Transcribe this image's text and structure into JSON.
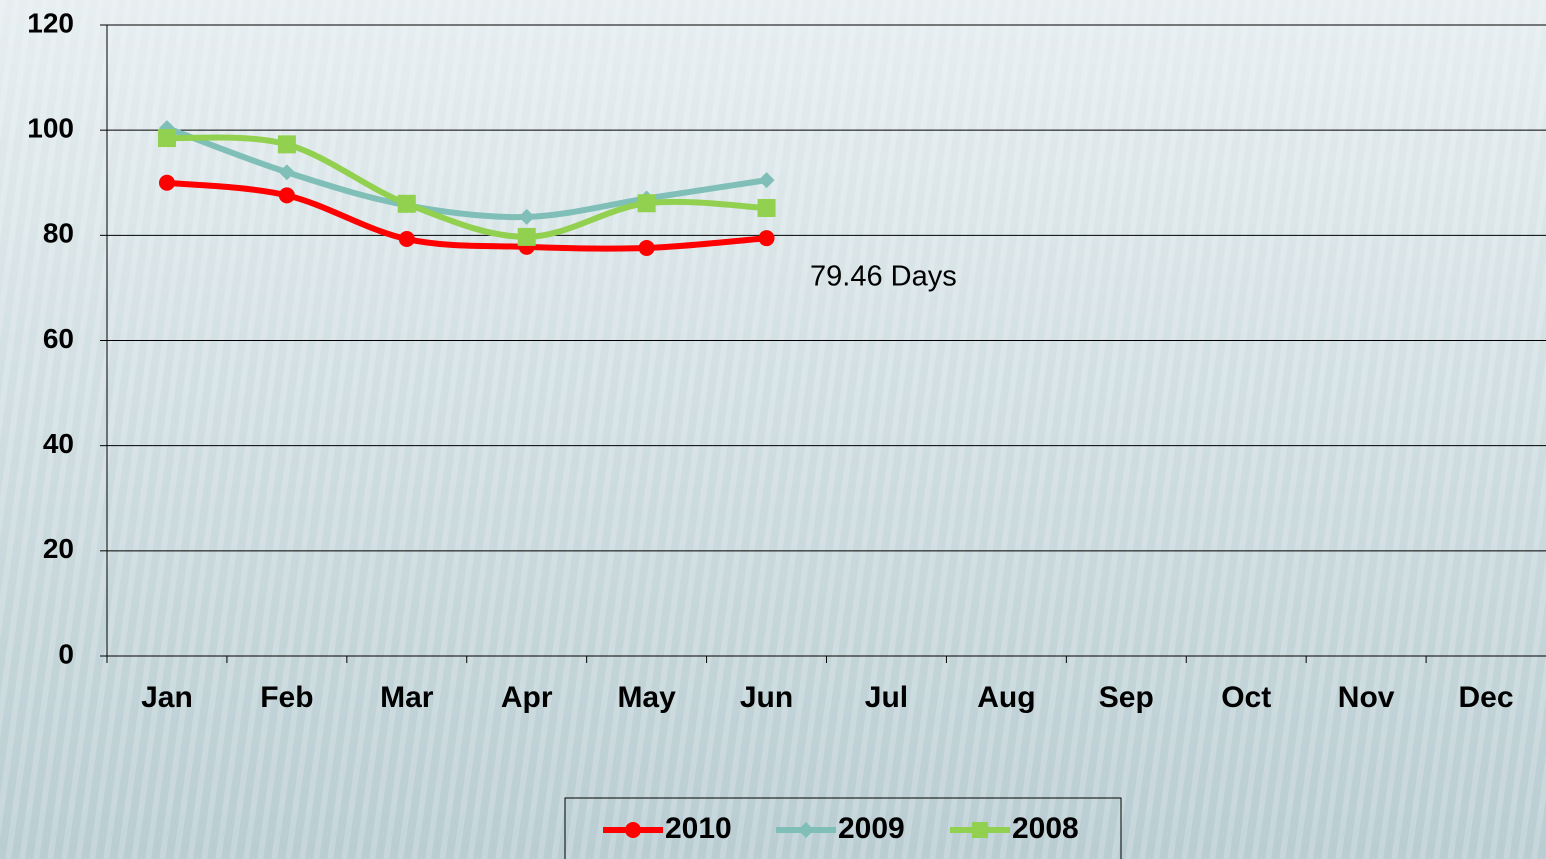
{
  "chart_data": {
    "type": "line",
    "categories": [
      "Jan",
      "Feb",
      "Mar",
      "Apr",
      "May",
      "Jun",
      "Jul",
      "Aug",
      "Sep",
      "Oct",
      "Nov",
      "Dec"
    ],
    "series": [
      {
        "name": "2010",
        "color": "#ff0000",
        "marker": "circle",
        "values": [
          90,
          87.6,
          79.3,
          77.8,
          77.6,
          79.46,
          null,
          null,
          null,
          null,
          null,
          null
        ]
      },
      {
        "name": "2009",
        "color": "#7fbfb8",
        "marker": "diamond",
        "values": [
          100.4,
          92,
          85.7,
          83.5,
          87,
          90.5,
          null,
          null,
          null,
          null,
          null,
          null
        ]
      },
      {
        "name": "2008",
        "color": "#92d050",
        "marker": "square",
        "values": [
          98.5,
          97.3,
          86,
          79.7,
          86.1,
          85.2,
          null,
          null,
          null,
          null,
          null,
          null
        ]
      }
    ],
    "annotations": [
      "79.46 Days"
    ],
    "ylim": [
      0,
      120
    ],
    "yticks": [
      0,
      20,
      40,
      60,
      80,
      100,
      120
    ],
    "grid": true,
    "legend": "bottom"
  }
}
